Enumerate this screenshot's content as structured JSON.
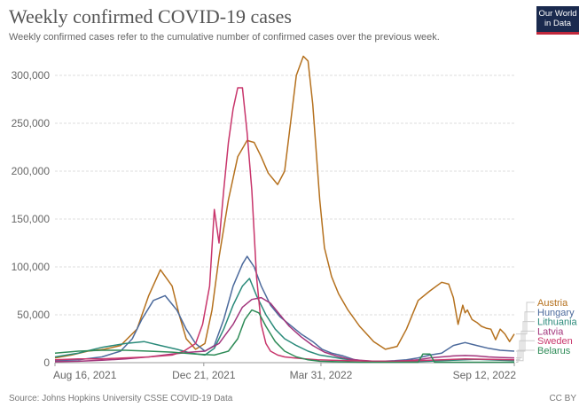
{
  "header": {
    "title": "Weekly confirmed COVID-19 cases",
    "subtitle": "Weekly confirmed cases refer to the cumulative number of confirmed cases over the previous week.",
    "logo_line1": "Our World",
    "logo_line2": "in Data"
  },
  "footer": {
    "source": "Source: Johns Hopkins University CSSE COVID-19 Data",
    "license": "CC BY"
  },
  "chart_data": {
    "type": "line",
    "title": "Weekly confirmed COVID-19 cases",
    "xlabel": "",
    "ylabel": "",
    "x_unit": "days since Aug 16, 2021",
    "xlim": [
      0,
      392
    ],
    "ylim": [
      0,
      300000
    ],
    "grid": true,
    "legend": "right",
    "yticks": [
      {
        "value": 0,
        "label": "0"
      },
      {
        "value": 50000,
        "label": "50,000"
      },
      {
        "value": 100000,
        "label": "100,000"
      },
      {
        "value": 150000,
        "label": "150,000"
      },
      {
        "value": 200000,
        "label": "200,000"
      },
      {
        "value": 250000,
        "label": "250,000"
      },
      {
        "value": 300000,
        "label": "300,000"
      }
    ],
    "xticks": [
      {
        "value": 0,
        "label": "Aug 16, 2021"
      },
      {
        "value": 127,
        "label": "Dec 21, 2021"
      },
      {
        "value": 227,
        "label": "Mar 31, 2022"
      },
      {
        "value": 392,
        "label": "Sep 12, 2022"
      }
    ],
    "series": [
      {
        "name": "Austria",
        "color": "#b5711e",
        "x": [
          0,
          14,
          28,
          42,
          56,
          70,
          80,
          90,
          100,
          106,
          112,
          120,
          128,
          134,
          140,
          148,
          156,
          164,
          170,
          176,
          182,
          190,
          196,
          200,
          206,
          212,
          216,
          220,
          226,
          230,
          236,
          242,
          250,
          260,
          272,
          282,
          292,
          300,
          310,
          320,
          330,
          336,
          340,
          344,
          348,
          350,
          352,
          356,
          360,
          364,
          368,
          372,
          376,
          380,
          384,
          388,
          392
        ],
        "y": [
          5000,
          8000,
          12000,
          14000,
          18000,
          35000,
          70000,
          97000,
          80000,
          50000,
          25000,
          14000,
          20000,
          55000,
          110000,
          170000,
          215000,
          232000,
          230000,
          215000,
          198000,
          186000,
          200000,
          240000,
          300000,
          320000,
          315000,
          270000,
          170000,
          120000,
          90000,
          72000,
          55000,
          38000,
          22000,
          14000,
          17000,
          35000,
          65000,
          75000,
          84000,
          82000,
          68000,
          40000,
          60000,
          52000,
          55000,
          45000,
          42000,
          38000,
          36000,
          35000,
          24000,
          35000,
          30000,
          22000,
          30000
        ]
      },
      {
        "name": "Hungary",
        "color": "#4c6a9c",
        "x": [
          0,
          20,
          40,
          56,
          66,
          74,
          84,
          94,
          104,
          112,
          120,
          128,
          136,
          144,
          152,
          160,
          164,
          170,
          176,
          184,
          192,
          200,
          210,
          220,
          228,
          236,
          246,
          256,
          262,
          270,
          280,
          290,
          300,
          310,
          320,
          330,
          340,
          350,
          360,
          370,
          380,
          392
        ],
        "y": [
          2000,
          3000,
          6000,
          12000,
          25000,
          45000,
          65000,
          70000,
          55000,
          35000,
          20000,
          12000,
          18000,
          45000,
          80000,
          103000,
          111000,
          100000,
          80000,
          60000,
          48000,
          40000,
          30000,
          22000,
          14000,
          10000,
          7000,
          3000,
          2000,
          1500,
          1500,
          2000,
          3000,
          5000,
          8000,
          10000,
          18000,
          21000,
          18000,
          15000,
          13000,
          12000
        ]
      },
      {
        "name": "Lithuania",
        "color": "#2a8a7a",
        "x": [
          0,
          20,
          40,
          60,
          76,
          90,
          104,
          116,
          128,
          136,
          144,
          152,
          160,
          166,
          172,
          180,
          188,
          196,
          206,
          216,
          226,
          236,
          246,
          256,
          266,
          276,
          290,
          300,
          310,
          320,
          330,
          340,
          350,
          360,
          370,
          380,
          392
        ],
        "y": [
          6000,
          10000,
          16000,
          20000,
          22000,
          18000,
          14000,
          10000,
          8000,
          15000,
          35000,
          60000,
          80000,
          88000,
          70000,
          50000,
          35000,
          25000,
          18000,
          12000,
          8000,
          6000,
          4000,
          2500,
          1500,
          1000,
          800,
          800,
          1000,
          1500,
          2000,
          2500,
          3000,
          3500,
          3000,
          2500,
          2000
        ]
      },
      {
        "name": "Latvia",
        "color": "#a2357c",
        "x": [
          0,
          20,
          40,
          60,
          80,
          100,
          116,
          128,
          140,
          152,
          160,
          168,
          176,
          184,
          192,
          200,
          210,
          220,
          230,
          240,
          250,
          260,
          272,
          286,
          300,
          310,
          320,
          330,
          340,
          350,
          360,
          370,
          380,
          392
        ],
        "y": [
          1000,
          1500,
          2500,
          4000,
          6000,
          9000,
          11000,
          12000,
          20000,
          40000,
          58000,
          66000,
          68000,
          62000,
          50000,
          38000,
          27000,
          18000,
          11000,
          7000,
          4000,
          2500,
          1500,
          1500,
          2000,
          3000,
          5000,
          6000,
          7000,
          7500,
          7000,
          6000,
          5500,
          5000
        ]
      },
      {
        "name": "Sweden",
        "color": "#c8356b",
        "x": [
          0,
          20,
          40,
          60,
          80,
          100,
          110,
          120,
          126,
          132,
          136,
          140,
          144,
          148,
          152,
          156,
          160,
          164,
          168,
          172,
          176,
          180,
          184,
          190,
          196,
          204,
          214,
          224,
          236,
          250,
          270,
          290,
          310,
          330,
          350,
          370,
          392
        ],
        "y": [
          3000,
          4000,
          4000,
          5000,
          6000,
          8000,
          12000,
          20000,
          40000,
          80000,
          160000,
          125000,
          180000,
          230000,
          265000,
          287000,
          287000,
          240000,
          180000,
          90000,
          40000,
          20000,
          12000,
          8000,
          6000,
          5000,
          4000,
          3000,
          2500,
          2000,
          1500,
          1500,
          2000,
          3000,
          4000,
          3500,
          3000
        ]
      },
      {
        "name": "Belarus",
        "color": "#2e8b57",
        "x": [
          0,
          20,
          40,
          60,
          80,
          100,
          120,
          136,
          148,
          156,
          162,
          168,
          174,
          180,
          188,
          196,
          206,
          216,
          226,
          240,
          260,
          280,
          300,
          310,
          314,
          320,
          324,
          330,
          350,
          370,
          392
        ],
        "y": [
          10000,
          12000,
          13000,
          13000,
          12000,
          11000,
          9000,
          8000,
          12000,
          25000,
          45000,
          55000,
          52000,
          38000,
          22000,
          12000,
          6000,
          3000,
          1500,
          1000,
          500,
          500,
          500,
          500,
          9000,
          9000,
          500,
          500,
          500,
          500,
          500
        ]
      }
    ]
  }
}
